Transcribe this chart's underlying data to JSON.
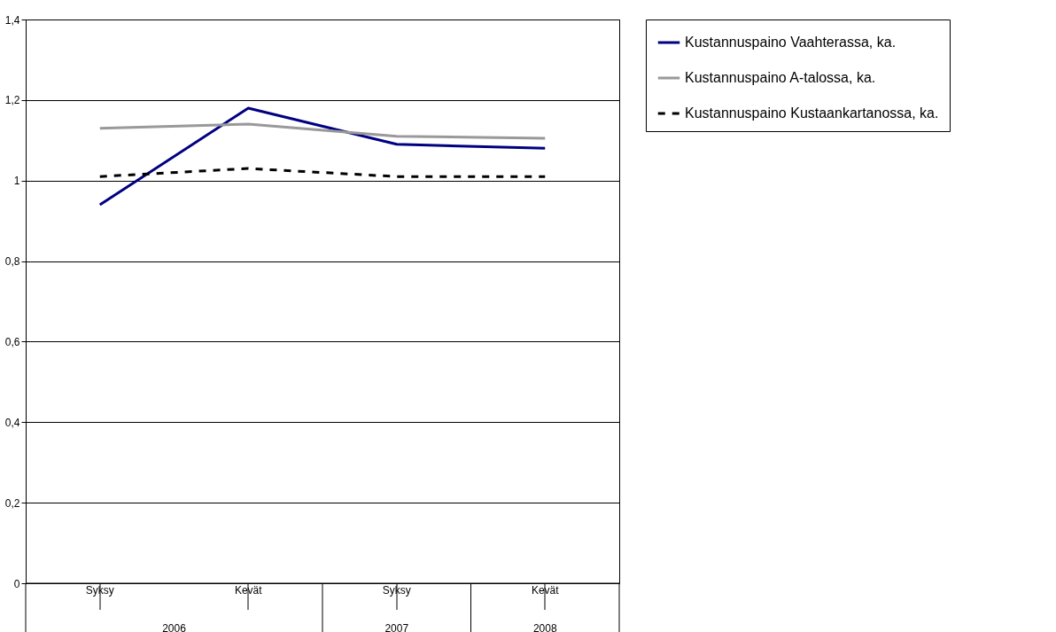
{
  "chart_data": {
    "type": "line",
    "categories": [
      "Syksy",
      "Kevät",
      "Syksy",
      "Kevät"
    ],
    "series": [
      {
        "name": "Kustannuspaino Vaahterassa, ka.",
        "color": "#000080",
        "values": [
          0.94,
          1.18,
          1.09,
          1.08
        ]
      },
      {
        "name": "Kustannuspaino A-talossa, ka.",
        "color": "#999999",
        "values": [
          1.13,
          1.14,
          1.11,
          1.105
        ]
      },
      {
        "name": "Kustannuspaino Kustaankartanossa, ka.",
        "color": "#000000",
        "values": [
          1.01,
          1.03,
          1.01,
          1.01
        ],
        "line_style": "dashed"
      }
    ],
    "annotations": [
      "2006",
      "2007",
      "2008"
    ],
    "ylim": [
      0,
      1.4
    ],
    "yticks": [
      {
        "value": 0,
        "label": "0"
      },
      {
        "value": 0.2,
        "label": "0,2"
      },
      {
        "value": 0.4,
        "label": "0,4"
      },
      {
        "value": 0.6,
        "label": "0,6"
      },
      {
        "value": 0.8,
        "label": "0,8"
      },
      {
        "value": 1,
        "label": "1"
      },
      {
        "value": 1.2,
        "label": "1,2"
      },
      {
        "value": 1.4,
        "label": "1,4"
      }
    ],
    "grid": "y",
    "legend": "right",
    "marker": "none"
  }
}
